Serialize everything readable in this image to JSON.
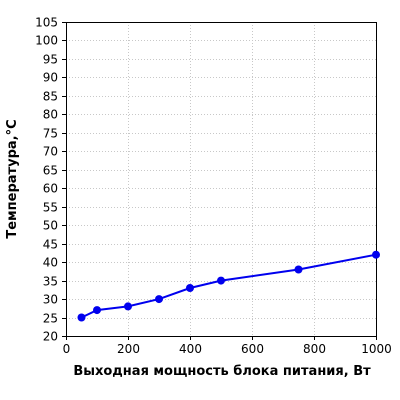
{
  "chart_data": {
    "type": "line",
    "xlabel": "Выходная мощность блока питания, Вт",
    "ylabel": "Температура,°С",
    "xlim": [
      0,
      1000
    ],
    "ylim": [
      20,
      105
    ],
    "x_ticks": [
      0,
      200,
      400,
      600,
      800,
      1000
    ],
    "y_ticks": [
      20,
      25,
      30,
      35,
      40,
      45,
      50,
      55,
      60,
      65,
      70,
      75,
      80,
      85,
      90,
      95,
      100,
      105
    ],
    "grid": true,
    "series": [
      {
        "color": "#0000ee",
        "x": [
          50,
          100,
          200,
          300,
          400,
          500,
          750,
          1000
        ],
        "y": [
          25,
          27,
          28,
          30,
          33,
          35,
          38,
          42
        ]
      }
    ]
  }
}
